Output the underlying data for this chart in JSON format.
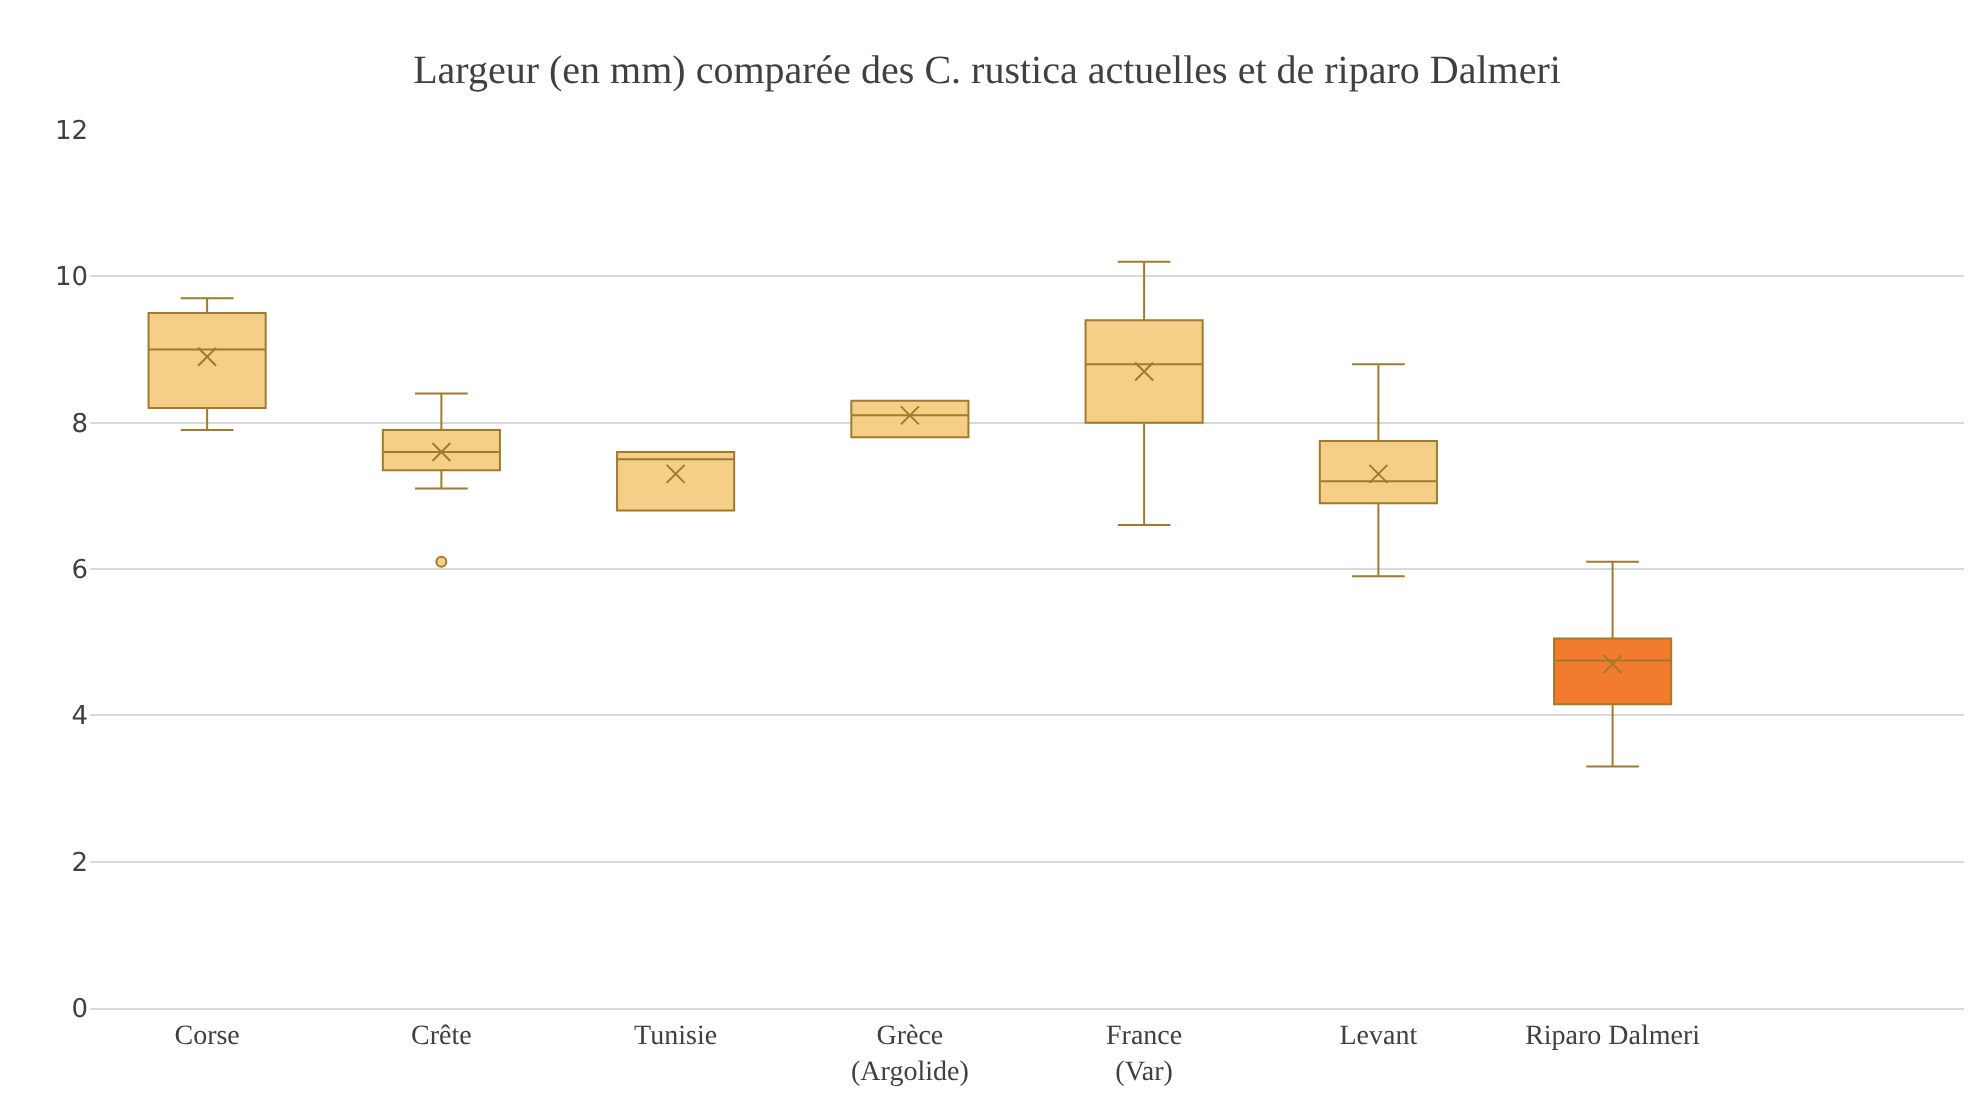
{
  "chart_data": {
    "type": "box",
    "title": "Largeur (en mm) comparée des C. rustica actuelles et de riparo Dalmeri",
    "categories": [
      "Corse",
      "Crête",
      "Tunisie",
      "Grèce\n(Argolide)",
      "France\n(Var)",
      "Levant",
      "Riparo Dalmeri"
    ],
    "boxes": [
      {
        "low": 7.9,
        "q1": 8.2,
        "median": 9.0,
        "q3": 9.5,
        "high": 9.7,
        "mean": 8.9
      },
      {
        "low": 7.1,
        "q1": 7.35,
        "median": 7.6,
        "q3": 7.9,
        "high": 8.4,
        "mean": 7.6,
        "outliers": [
          6.1
        ]
      },
      {
        "low": 6.8,
        "q1": 6.8,
        "median": 7.5,
        "q3": 7.6,
        "high": 7.6,
        "mean": 7.3
      },
      {
        "low": 7.8,
        "q1": 7.8,
        "median": 8.1,
        "q3": 8.3,
        "high": 8.3,
        "mean": 8.1
      },
      {
        "low": 6.6,
        "q1": 8.0,
        "median": 8.8,
        "q3": 9.4,
        "high": 10.2,
        "mean": 8.7
      },
      {
        "low": 5.9,
        "q1": 6.9,
        "median": 7.2,
        "q3": 7.75,
        "high": 8.8,
        "mean": 7.3
      },
      {
        "low": 3.3,
        "q1": 4.15,
        "median": 4.75,
        "q3": 5.05,
        "high": 6.1,
        "mean": 4.7
      }
    ],
    "colors": [
      "#f5cf87",
      "#f5cf87",
      "#f5cf87",
      "#f5cf87",
      "#f5cf87",
      "#f5cf87",
      "#f27b2d"
    ],
    "ylim": [
      0,
      12
    ],
    "yticks": [
      0,
      2,
      4,
      6,
      8,
      10,
      12
    ],
    "grid": "y"
  }
}
